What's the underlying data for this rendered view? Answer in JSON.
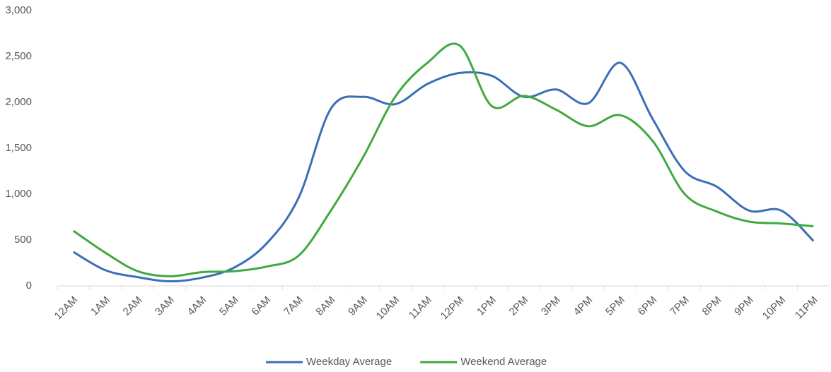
{
  "chart_data": {
    "type": "line",
    "categories": [
      "12AM",
      "1AM",
      "2AM",
      "3AM",
      "4AM",
      "5AM",
      "6AM",
      "7AM",
      "8AM",
      "9AM",
      "10AM",
      "11AM",
      "12PM",
      "1PM",
      "2PM",
      "3PM",
      "4PM",
      "5PM",
      "6PM",
      "7PM",
      "8PM",
      "9PM",
      "10PM",
      "11PM"
    ],
    "series": [
      {
        "name": "Weekday Average",
        "color": "#3a6fb8",
        "values": [
          370,
          170,
          95,
          50,
          90,
          200,
          460,
          960,
          1930,
          2060,
          1980,
          2200,
          2320,
          2290,
          2060,
          2140,
          1990,
          2430,
          1820,
          1250,
          1080,
          820,
          820,
          490
        ]
      },
      {
        "name": "Weekend Average",
        "color": "#3faa3f",
        "values": [
          600,
          360,
          160,
          105,
          150,
          160,
          210,
          330,
          820,
          1400,
          2060,
          2430,
          2620,
          1960,
          2070,
          1920,
          1740,
          1860,
          1580,
          1000,
          810,
          700,
          680,
          650
        ]
      }
    ],
    "ylim": [
      0,
      3000
    ],
    "yticks": [
      0,
      500,
      {
        "value": 1000,
        "label": "1,000"
      },
      {
        "value": 1500,
        "label": "1,500"
      },
      {
        "value": 2000,
        "label": "2,000"
      },
      {
        "value": 2500,
        "label": "2,500"
      },
      {
        "value": 3000,
        "label": "3,000"
      }
    ],
    "grid": false,
    "legend": "bottom"
  }
}
